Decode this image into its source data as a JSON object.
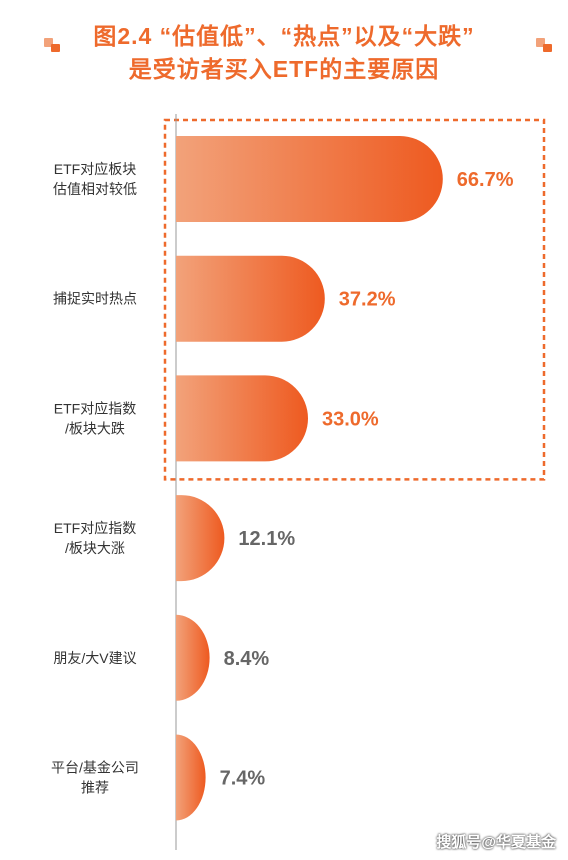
{
  "title": {
    "line1": "图2.4 “估值低”、“热点”以及“大跌”",
    "line2": "是受访者买入ETF的主要原因"
  },
  "colors": {
    "accent": "#ee6a2c",
    "bar_light": "#f2a27a",
    "bar_dark": "#ee5a20",
    "value_highlight": "#ee6a2c",
    "value_muted": "#666666",
    "box": "#ee6a2c"
  },
  "chart_data": {
    "type": "bar",
    "orientation": "horizontal",
    "title": "图2.4 “估值低”、“热点”以及“大跌”是受访者买入ETF的主要原因",
    "categories": [
      [
        "ETF对应板块",
        "估值相对较低"
      ],
      [
        "捕捉实时热点"
      ],
      [
        "ETF对应指数",
        "/板块大跌"
      ],
      [
        "ETF对应指数",
        "/板块大涨"
      ],
      [
        "朋友/大V建议"
      ],
      [
        "平台/基金公司",
        "推荐"
      ]
    ],
    "values": [
      66.7,
      37.2,
      33.0,
      12.1,
      8.4,
      7.4
    ],
    "value_labels": [
      "66.7%",
      "37.2%",
      "33.0%",
      "12.1%",
      "8.4%",
      "7.4%"
    ],
    "highlighted": [
      true,
      true,
      true,
      false,
      false,
      false
    ],
    "xlim": [
      0,
      100
    ],
    "grid": false,
    "legend": "none"
  },
  "watermark": "搜狐号@华夏基金"
}
